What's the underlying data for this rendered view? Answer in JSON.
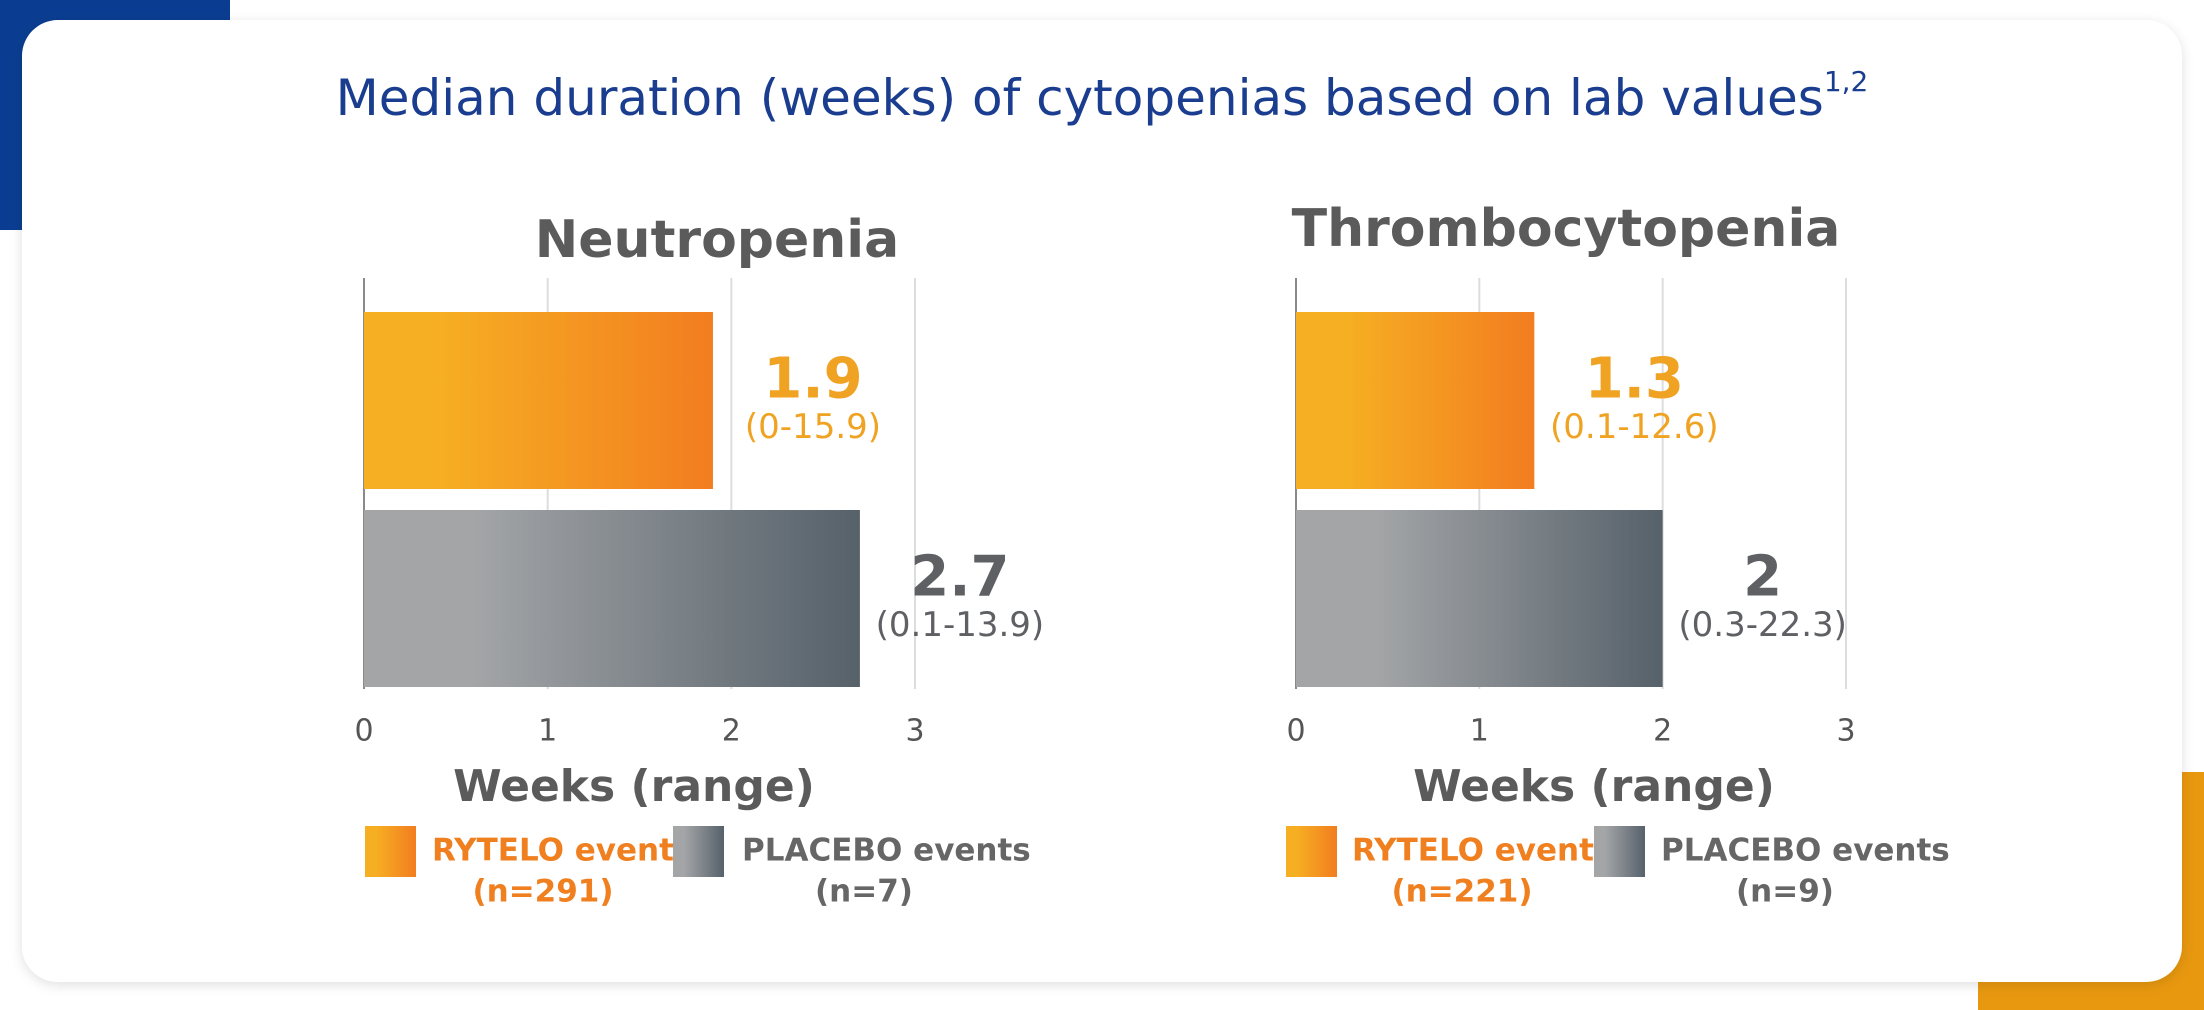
{
  "title": "Median duration (weeks) of cytopenias based on lab values",
  "title_superscript": "1,2",
  "chart_data": [
    {
      "type": "bar",
      "orientation": "horizontal",
      "title": "Neutropenia",
      "x_label": "Weeks (range)",
      "xlim": [
        0,
        3
      ],
      "xticks": [
        0,
        1,
        2,
        3
      ],
      "grid": true,
      "series": [
        {
          "name": "RYTELO events",
          "count": "(n=291)",
          "color": [
            "#f6ae22",
            "#f27d20"
          ],
          "label_color": "#f0a323",
          "legend_color": "#ef7f1f",
          "values": [
            1.9
          ],
          "range": "(0-15.9)"
        },
        {
          "name": "PLACEBO events",
          "count": "(n=7)",
          "color": [
            "#a3a5a7",
            "#56616a"
          ],
          "label_color": "#5e6064",
          "legend_color": "#666666",
          "values": [
            2.7
          ],
          "range": "(0.1-13.9)"
        }
      ]
    },
    {
      "type": "bar",
      "orientation": "horizontal",
      "title": "Thrombocytopenia",
      "x_label": "Weeks (range)",
      "xlim": [
        0,
        3
      ],
      "xticks": [
        0,
        1,
        2,
        3
      ],
      "grid": true,
      "series": [
        {
          "name": "RYTELO events",
          "count": "(n=221)",
          "color": [
            "#f6ae22",
            "#f27d20"
          ],
          "label_color": "#f0a323",
          "legend_color": "#ef7f1f",
          "values": [
            1.3
          ],
          "range": "(0.1-12.6)"
        },
        {
          "name": "PLACEBO events",
          "count": "(n=9)",
          "color": [
            "#a3a5a7",
            "#56616a"
          ],
          "label_color": "#5e6064",
          "legend_color": "#666666",
          "values": [
            2.0
          ],
          "range": "(0.3-22.3)"
        }
      ]
    }
  ]
}
